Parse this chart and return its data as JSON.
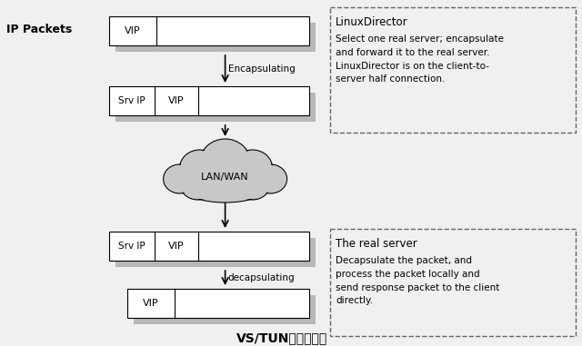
{
  "title": "VS/TUN的工作流程",
  "bg_color": "#f0f0f0",
  "ip_packets_label": "IP Packets",
  "encapsulating_label": "Encapsulating",
  "decapsulating_label": "decapsulating",
  "lanwan_label": "LAN/WAN",
  "vip_label": "VIP",
  "srv_ip_label": "Srv IP",
  "linux_director_title": "LinuxDirector",
  "linux_director_text": "Select one real server; encapsulate\nand forward it to the real server.\nLinuxDirector is on the client-to-\nserver half connection.",
  "real_server_title": "The real server",
  "real_server_text": "Decapsulate the packet, and\nprocess the packet locally and\nsend response packet to the client\ndirectly.",
  "shadow_color": "#b8b8b8",
  "box_facecolor": "#ffffff",
  "box_edgecolor": "#000000",
  "cloud_color": "#c8c8c8",
  "cloud_edge": "#000000",
  "dashed_box_color": "#666666"
}
